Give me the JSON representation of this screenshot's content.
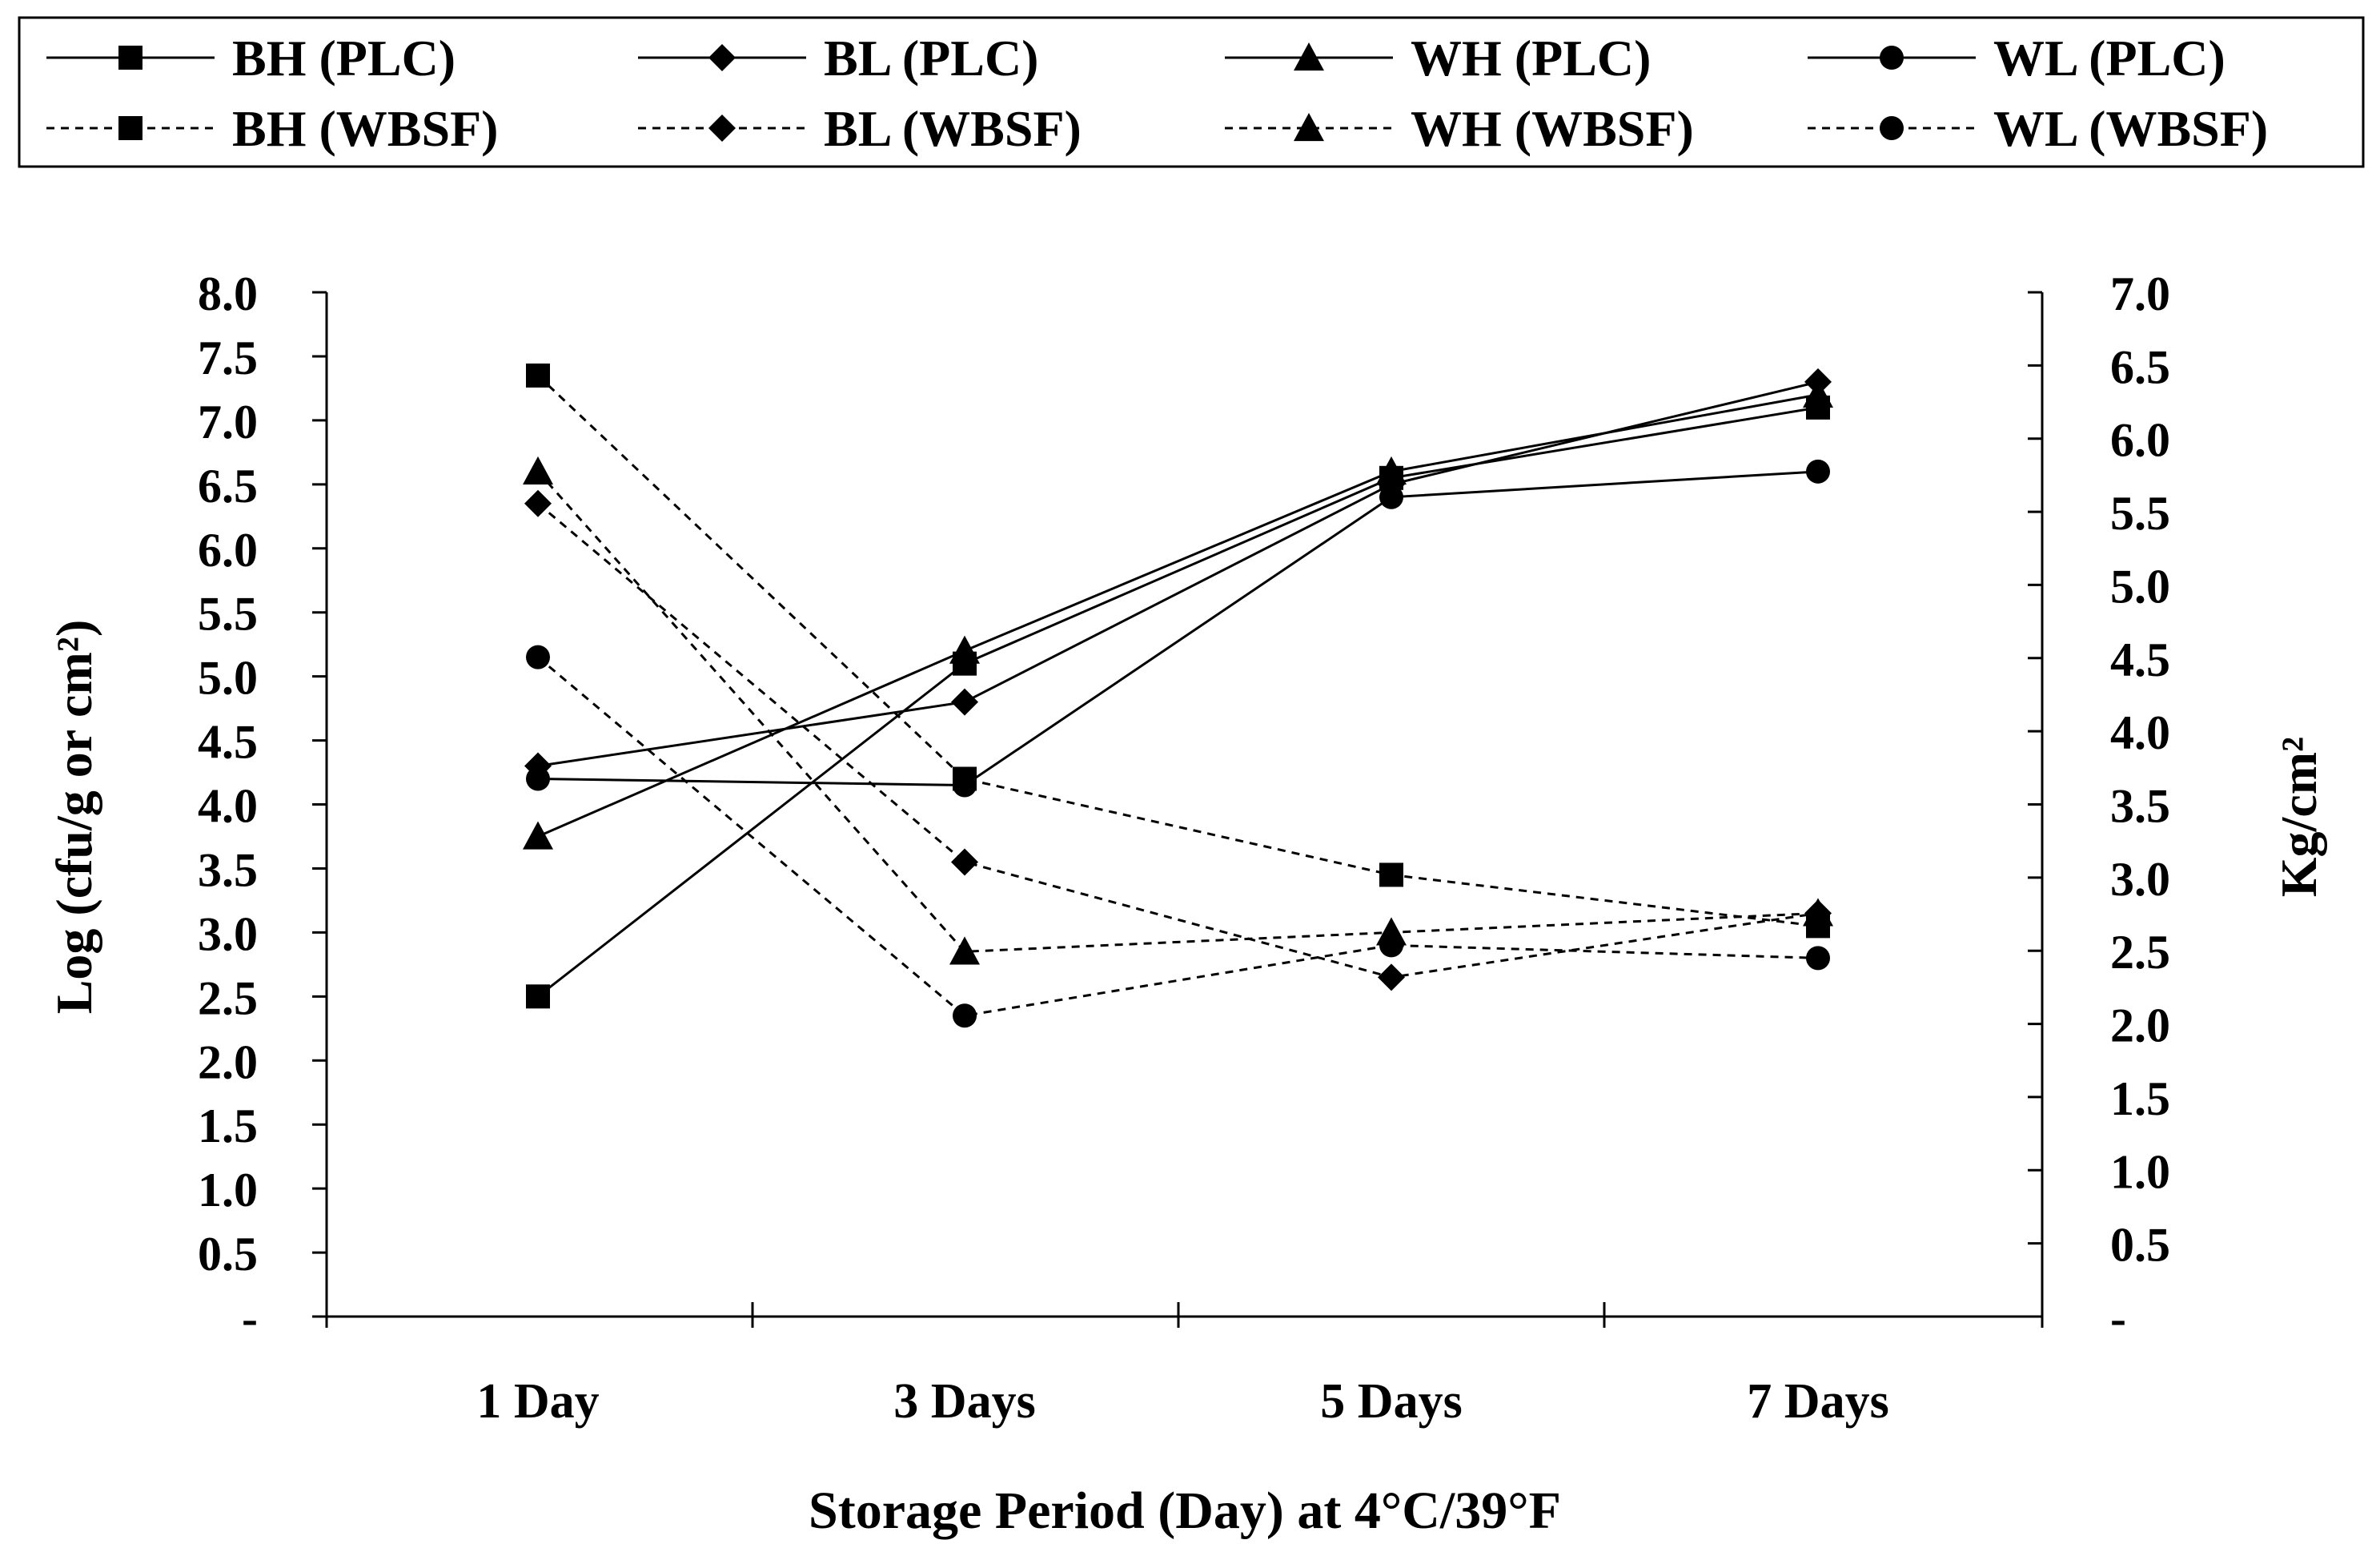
{
  "chart_data": {
    "type": "line",
    "title": "",
    "xlabel": "Storage Period (Day) at 4°C/39°F",
    "ylabel": "Log (cfu/g or cm²)",
    "y2label": "Kg/cm²",
    "categories": [
      "1 Day",
      "3 Days",
      "5 Days",
      "7 Days"
    ],
    "ylim": [
      0,
      8.0
    ],
    "y2lim": [
      0,
      7.0
    ],
    "yticks": [
      "-",
      "0.5",
      "1.0",
      "1.5",
      "2.0",
      "2.5",
      "3.0",
      "3.5",
      "4.0",
      "4.5",
      "5.0",
      "5.5",
      "6.0",
      "6.5",
      "7.0",
      "7.5",
      "8.0"
    ],
    "y2ticks": [
      "-",
      "0.5",
      "1.0",
      "1.5",
      "2.0",
      "2.5",
      "3.0",
      "3.5",
      "4.0",
      "4.5",
      "5.0",
      "5.5",
      "6.0",
      "6.5",
      "7.0"
    ],
    "legend_position": "top",
    "series": [
      {
        "name": "BH (PLC)",
        "marker": "square",
        "dash": "solid",
        "axis": "left",
        "values": [
          2.5,
          5.1,
          6.55,
          7.1
        ]
      },
      {
        "name": "BL (PLC)",
        "marker": "diamond",
        "dash": "solid",
        "axis": "left",
        "values": [
          4.3,
          4.8,
          6.5,
          7.3
        ]
      },
      {
        "name": "WH (PLC)",
        "marker": "triangle",
        "dash": "solid",
        "axis": "left",
        "values": [
          3.75,
          5.2,
          6.6,
          7.2
        ]
      },
      {
        "name": "WL (PLC)",
        "marker": "circle",
        "dash": "solid",
        "axis": "left",
        "values": [
          4.2,
          4.15,
          6.4,
          6.6
        ]
      },
      {
        "name": "BH (WBSF)",
        "marker": "square",
        "dash": "dashed",
        "axis": "left",
        "values": [
          7.35,
          4.2,
          3.45,
          3.05
        ]
      },
      {
        "name": "BL (WBSF)",
        "marker": "diamond",
        "dash": "dashed",
        "axis": "left",
        "values": [
          6.35,
          3.55,
          2.65,
          3.15
        ]
      },
      {
        "name": "WH (WBSF)",
        "marker": "triangle",
        "dash": "dashed",
        "axis": "left",
        "values": [
          6.6,
          2.85,
          3.0,
          3.15
        ]
      },
      {
        "name": "WL (WBSF)",
        "marker": "circle",
        "dash": "dashed",
        "axis": "left",
        "values": [
          5.15,
          2.35,
          2.9,
          2.8
        ]
      }
    ]
  }
}
